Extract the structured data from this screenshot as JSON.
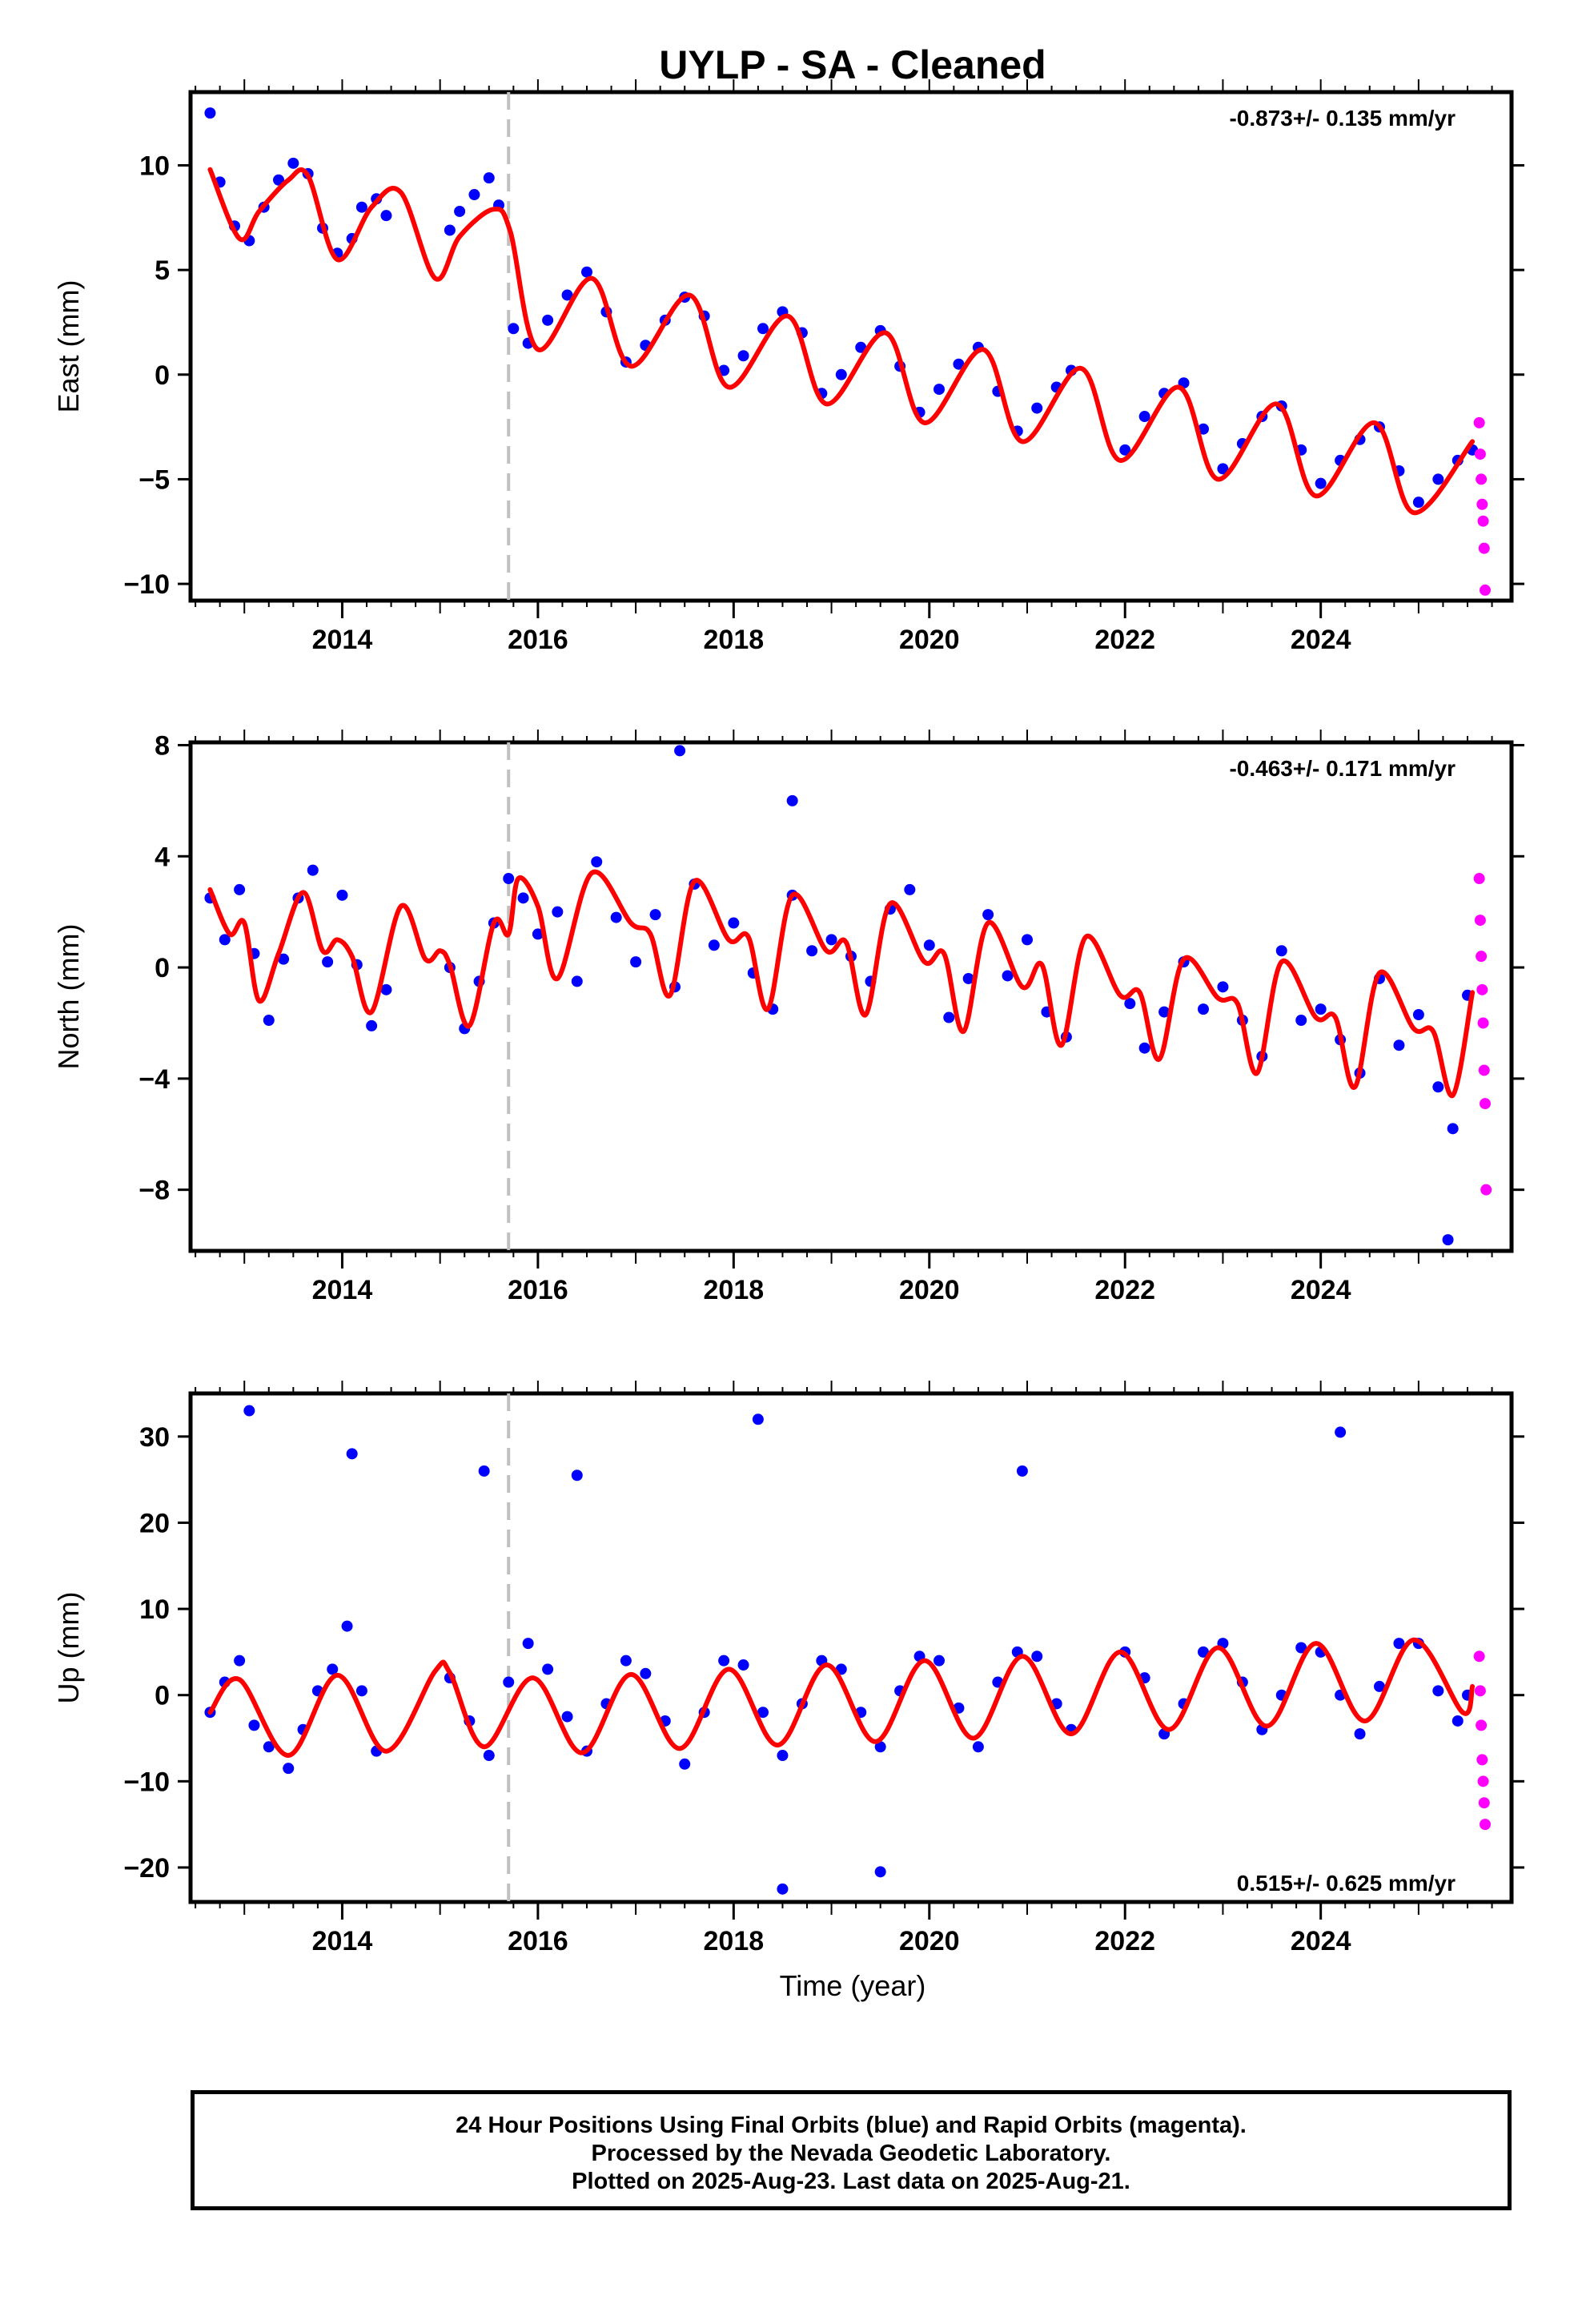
{
  "title": "UYLP  - SA - Cleaned",
  "xlabel": "Time (year)",
  "footer": {
    "line1": "24 Hour Positions Using Final Orbits (blue) and Rapid Orbits (magenta).",
    "line2": "Processed by the Nevada Geodetic Laboratory.",
    "line3": "Plotted on 2025-Aug-23. Last data on 2025-Aug-21."
  },
  "colors": {
    "final_orbits": "#0000ff",
    "rapid_orbits": "#ff00ff",
    "model": "#ff0000",
    "reference_line": "#c0c0c0"
  },
  "chart_data": [
    {
      "type": "scatter",
      "component": "east",
      "ylabel": "East (mm)",
      "rate": "-0.873+/- 0.135 mm/yr",
      "xlim": [
        2012.45,
        2025.95
      ],
      "ylim": [
        -10.8,
        13.5
      ],
      "xticks": [
        "2014",
        "2016",
        "2018",
        "2020",
        "2022",
        "2024"
      ],
      "yticks": [
        "10",
        "5",
        "0",
        "−5",
        "−10"
      ],
      "ytick_values": [
        10,
        5,
        0,
        -5,
        -10
      ],
      "reference_line_x": 2015.7,
      "series": [
        {
          "color": "blue",
          "x": [
            2012.65,
            2012.75,
            2012.9,
            2013.05,
            2013.2,
            2013.35,
            2013.5,
            2013.65,
            2013.8,
            2013.95,
            2014.1,
            2014.2,
            2014.35,
            2014.45,
            2015.1,
            2015.2,
            2015.35,
            2015.5,
            2015.6,
            2015.75,
            2015.9,
            2016.1,
            2016.3,
            2016.5,
            2016.7,
            2016.9,
            2017.1,
            2017.3,
            2017.5,
            2017.7,
            2017.9,
            2018.1,
            2018.3,
            2018.5,
            2018.7,
            2018.9,
            2019.1,
            2019.3,
            2019.5,
            2019.7,
            2019.9,
            2020.1,
            2020.3,
            2020.5,
            2020.7,
            2020.9,
            2021.1,
            2021.3,
            2021.45,
            2022.0,
            2022.2,
            2022.4,
            2022.6,
            2022.8,
            2023.0,
            2023.2,
            2023.4,
            2023.6,
            2023.8,
            2024.0,
            2024.2,
            2024.4,
            2024.6,
            2024.8,
            2025.0,
            2025.2,
            2025.4,
            2025.55
          ],
          "y": [
            12.5,
            9.2,
            7.1,
            6.4,
            8.0,
            9.3,
            10.1,
            9.6,
            7.0,
            5.8,
            6.5,
            8.0,
            8.4,
            7.6,
            6.9,
            7.8,
            8.6,
            9.4,
            8.1,
            2.2,
            1.5,
            2.6,
            3.8,
            4.9,
            3.0,
            0.6,
            1.4,
            2.6,
            3.7,
            2.8,
            0.2,
            0.9,
            2.2,
            3.0,
            2.0,
            -0.9,
            0.0,
            1.3,
            2.1,
            0.4,
            -1.8,
            -0.7,
            0.5,
            1.3,
            -0.8,
            -2.7,
            -1.6,
            -0.6,
            0.2,
            -3.6,
            -2.0,
            -0.9,
            -0.4,
            -2.6,
            -4.5,
            -3.3,
            -2.0,
            -1.5,
            -3.6,
            -5.2,
            -4.1,
            -3.1,
            -2.5,
            -4.6,
            -6.1,
            -5.0,
            -4.1,
            -3.6
          ]
        },
        {
          "color": "magenta",
          "x": [
            2025.62,
            2025.63,
            2025.64,
            2025.65,
            2025.66,
            2025.67,
            2025.68
          ],
          "y": [
            -2.3,
            -3.8,
            -5.0,
            -6.2,
            -7.0,
            -8.3,
            -10.3
          ]
        }
      ],
      "model": {
        "color": "red",
        "x": [
          2012.65,
          2012.95,
          2013.15,
          2013.45,
          2013.65,
          2013.95,
          2014.3,
          2014.6,
          2014.95,
          2015.2,
          2015.55,
          2015.72,
          2016.0,
          2016.55,
          2016.95,
          2017.55,
          2017.95,
          2018.55,
          2018.95,
          2019.55,
          2019.95,
          2020.55,
          2020.95,
          2021.55,
          2021.95,
          2022.55,
          2022.95,
          2023.55,
          2023.95,
          2024.55,
          2024.95,
          2025.55
        ],
        "y": [
          9.8,
          6.5,
          7.8,
          9.3,
          9.5,
          5.5,
          8.0,
          8.7,
          4.6,
          6.6,
          7.9,
          6.8,
          1.2,
          4.6,
          0.4,
          3.8,
          -0.6,
          2.8,
          -1.4,
          2.0,
          -2.3,
          1.2,
          -3.2,
          0.3,
          -4.1,
          -0.6,
          -5.0,
          -1.4,
          -5.8,
          -2.3,
          -6.6,
          -3.2
        ]
      }
    },
    {
      "type": "scatter",
      "component": "north",
      "ylabel": "North (mm)",
      "rate": "-0.463+/- 0.171 mm/yr",
      "xlim": [
        2012.45,
        2025.95
      ],
      "ylim": [
        -10.2,
        8.1
      ],
      "xticks": [
        "2014",
        "2016",
        "2018",
        "2020",
        "2022",
        "2024"
      ],
      "yticks": [
        "8",
        "4",
        "0",
        "−4",
        "−8"
      ],
      "ytick_values": [
        8,
        4,
        0,
        -4,
        -8
      ],
      "reference_line_x": 2015.7,
      "series": [
        {
          "color": "blue",
          "x": [
            2012.65,
            2012.8,
            2012.95,
            2013.1,
            2013.25,
            2013.4,
            2013.55,
            2013.7,
            2013.85,
            2014.0,
            2014.15,
            2014.3,
            2014.45,
            2015.1,
            2015.25,
            2015.4,
            2015.55,
            2015.7,
            2015.85,
            2016.0,
            2016.2,
            2016.4,
            2016.6,
            2016.8,
            2017.0,
            2017.2,
            2017.4,
            2017.6,
            2017.8,
            2018.0,
            2018.2,
            2018.4,
            2018.6,
            2018.8,
            2019.0,
            2019.2,
            2019.4,
            2019.6,
            2019.8,
            2020.0,
            2020.2,
            2020.4,
            2020.6,
            2020.8,
            2021.0,
            2021.2,
            2021.4,
            2022.05,
            2022.2,
            2022.4,
            2022.6,
            2022.8,
            2023.0,
            2023.2,
            2023.4,
            2023.6,
            2023.8,
            2024.0,
            2024.2,
            2024.4,
            2024.6,
            2024.8,
            2025.0,
            2025.2,
            2025.35,
            2025.5,
            2017.45,
            2018.6,
            2025.3
          ],
          "y": [
            2.5,
            1.0,
            2.8,
            0.5,
            -1.9,
            0.3,
            2.5,
            3.5,
            0.2,
            2.6,
            0.1,
            -2.1,
            -0.8,
            0.0,
            -2.2,
            -0.5,
            1.6,
            3.2,
            2.5,
            1.2,
            2.0,
            -0.5,
            3.8,
            1.8,
            0.2,
            1.9,
            -0.7,
            3.0,
            0.8,
            1.6,
            -0.2,
            -1.5,
            2.6,
            0.6,
            1.0,
            0.4,
            -0.5,
            2.1,
            2.8,
            0.8,
            -1.8,
            -0.4,
            1.9,
            -0.3,
            1.0,
            -1.6,
            -2.5,
            -1.3,
            -2.9,
            -1.6,
            0.2,
            -1.5,
            -0.7,
            -1.9,
            -3.2,
            0.6,
            -1.9,
            -1.5,
            -2.6,
            -3.8,
            -0.4,
            -2.8,
            -1.7,
            -4.3,
            -5.8,
            -1.0,
            7.8,
            6.0,
            -9.8
          ]
        },
        {
          "color": "magenta",
          "x": [
            2025.62,
            2025.63,
            2025.64,
            2025.65,
            2025.66,
            2025.67,
            2025.68,
            2025.69
          ],
          "y": [
            3.2,
            1.7,
            0.4,
            -0.8,
            -2.0,
            -3.7,
            -4.9,
            -8.0
          ]
        }
      ],
      "model": {
        "color": "red",
        "x": [
          2012.65,
          2012.85,
          2013.0,
          2013.15,
          2013.35,
          2013.6,
          2013.8,
          2013.95,
          2014.1,
          2014.3,
          2014.6,
          2014.85,
          2015.0,
          2015.1,
          2015.3,
          2015.55,
          2015.7,
          2015.8,
          2016.0,
          2016.2,
          2016.55,
          2016.95,
          2017.15,
          2017.35,
          2017.6,
          2017.95,
          2018.15,
          2018.35,
          2018.6,
          2018.95,
          2019.15,
          2019.35,
          2019.6,
          2019.95,
          2020.15,
          2020.35,
          2020.6,
          2020.95,
          2021.15,
          2021.35,
          2021.6,
          2021.95,
          2022.15,
          2022.35,
          2022.6,
          2022.95,
          2023.15,
          2023.35,
          2023.6,
          2023.95,
          2024.15,
          2024.35,
          2024.6,
          2024.95,
          2025.15,
          2025.35,
          2025.55
        ],
        "y": [
          2.8,
          1.2,
          1.6,
          -1.2,
          0.5,
          2.7,
          0.6,
          1.0,
          0.4,
          -1.6,
          2.2,
          0.3,
          0.6,
          0.1,
          -2.1,
          1.6,
          1.2,
          3.2,
          2.2,
          -0.4,
          3.4,
          1.6,
          1.2,
          -1.0,
          3.1,
          1.0,
          1.1,
          -1.5,
          2.6,
          0.6,
          0.9,
          -1.7,
          2.3,
          0.2,
          0.5,
          -2.3,
          1.6,
          -0.7,
          0.1,
          -2.8,
          1.1,
          -1.0,
          -0.9,
          -3.3,
          0.3,
          -1.1,
          -1.3,
          -3.8,
          0.2,
          -1.8,
          -1.8,
          -4.3,
          -0.2,
          -2.2,
          -2.3,
          -4.6,
          -0.9
        ]
      }
    },
    {
      "type": "scatter",
      "component": "up",
      "ylabel": "Up (mm)",
      "rate": "0.515+/- 0.625 mm/yr",
      "xlim": [
        2012.45,
        2025.95
      ],
      "ylim": [
        -24,
        35
      ],
      "xticks": [
        "2014",
        "2016",
        "2018",
        "2020",
        "2022",
        "2024"
      ],
      "yticks": [
        "30",
        "20",
        "10",
        "0",
        "−10",
        "−20"
      ],
      "ytick_values": [
        30,
        20,
        10,
        0,
        -10,
        -20
      ],
      "reference_line_x": 2015.7,
      "series": [
        {
          "color": "blue",
          "x": [
            2012.65,
            2012.8,
            2012.95,
            2013.1,
            2013.25,
            2013.45,
            2013.6,
            2013.75,
            2013.9,
            2014.05,
            2014.2,
            2014.35,
            2015.1,
            2015.3,
            2015.5,
            2015.7,
            2015.9,
            2016.1,
            2016.3,
            2016.5,
            2016.7,
            2016.9,
            2017.1,
            2017.3,
            2017.5,
            2017.7,
            2017.9,
            2018.1,
            2018.3,
            2018.5,
            2018.7,
            2018.9,
            2019.1,
            2019.3,
            2019.5,
            2019.7,
            2019.9,
            2020.1,
            2020.3,
            2020.5,
            2020.7,
            2020.9,
            2021.1,
            2021.3,
            2021.45,
            2022.0,
            2022.2,
            2022.4,
            2022.6,
            2022.8,
            2023.0,
            2023.2,
            2023.4,
            2023.6,
            2023.8,
            2024.0,
            2024.2,
            2024.4,
            2024.6,
            2024.8,
            2025.0,
            2025.2,
            2025.4,
            2025.5,
            2013.05,
            2014.1,
            2015.45,
            2016.4,
            2018.25,
            2020.95,
            2024.2,
            2019.5,
            2018.5
          ],
          "y": [
            -2.0,
            1.5,
            4.0,
            -3.5,
            -6.0,
            -8.5,
            -4.0,
            0.5,
            3.0,
            8.0,
            0.5,
            -6.5,
            2.0,
            -3.0,
            -7.0,
            1.5,
            6.0,
            3.0,
            -2.5,
            -6.5,
            -1.0,
            4.0,
            2.5,
            -3.0,
            -8.0,
            -2.0,
            4.0,
            3.5,
            -2.0,
            -7.0,
            -1.0,
            4.0,
            3.0,
            -2.0,
            -6.0,
            0.5,
            4.5,
            4.0,
            -1.5,
            -6.0,
            1.5,
            5.0,
            4.5,
            -1.0,
            -4.0,
            5.0,
            2.0,
            -4.5,
            -1.0,
            5.0,
            6.0,
            1.5,
            -4.0,
            0.0,
            5.5,
            5.0,
            0.0,
            -4.5,
            1.0,
            6.0,
            6.0,
            0.5,
            -3.0,
            0.0,
            33.0,
            28.0,
            26.0,
            25.5,
            32.0,
            26.0,
            30.5,
            -20.5,
            -22.5
          ]
        },
        {
          "color": "magenta",
          "x": [
            2025.62,
            2025.63,
            2025.64,
            2025.65,
            2025.66,
            2025.67,
            2025.68
          ],
          "y": [
            4.5,
            0.5,
            -3.5,
            -7.5,
            -10.0,
            -12.5,
            -15.0
          ]
        }
      ],
      "model": {
        "color": "red",
        "x": [
          2012.65,
          2012.95,
          2013.45,
          2013.95,
          2014.45,
          2014.95,
          2015.1,
          2015.45,
          2015.95,
          2016.45,
          2016.95,
          2017.45,
          2017.95,
          2018.45,
          2018.95,
          2019.45,
          2019.95,
          2020.45,
          2020.95,
          2021.45,
          2021.95,
          2022.45,
          2022.95,
          2023.45,
          2023.95,
          2024.45,
          2024.95,
          2025.45,
          2025.55
        ],
        "y": [
          -2.0,
          1.8,
          -7.0,
          2.3,
          -6.5,
          2.8,
          2.6,
          -6.0,
          2.0,
          -6.7,
          2.4,
          -6.2,
          3.0,
          -5.8,
          3.5,
          -5.4,
          4.0,
          -5.0,
          4.5,
          -4.5,
          5.0,
          -4.0,
          5.5,
          -3.6,
          6.0,
          -3.0,
          6.4,
          -2.0,
          1.0
        ]
      }
    }
  ]
}
